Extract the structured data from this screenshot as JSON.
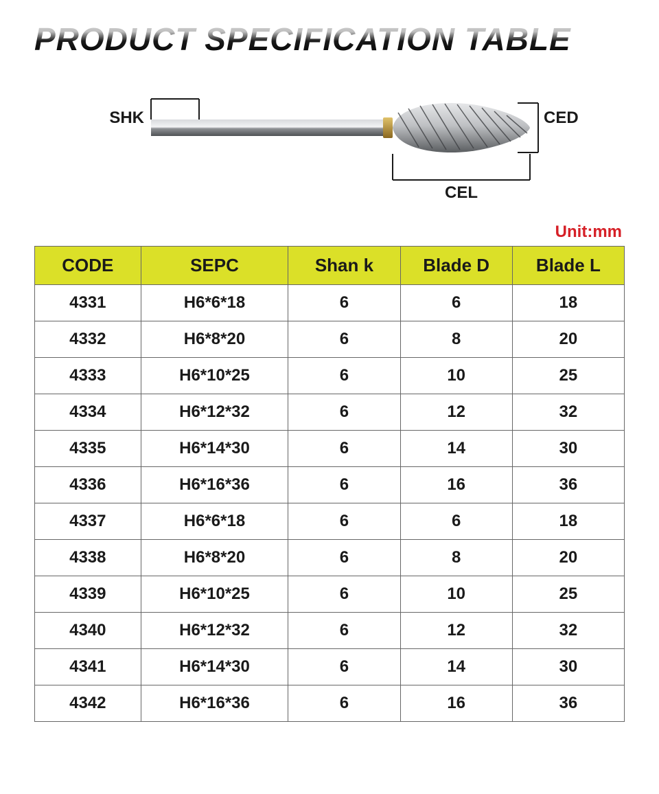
{
  "title": "PRODUCT SPECIFICATION TABLE",
  "unit_label": "Unit:mm",
  "diagram": {
    "shk_label": "SHK",
    "ced_label": "CED",
    "cel_label": "CEL",
    "shank_color": "#8f9295",
    "shank_dark": "#4f5255",
    "shank_light": "#d8dadd",
    "gold_band": "#b98f3a",
    "head_light": "#c9cbce",
    "head_dark": "#5a5d60",
    "line_color": "#1a1a1a",
    "label_color": "#1a1a1a",
    "label_fontsize": 24
  },
  "table": {
    "header_bg": "#dbe028",
    "border_color": "#666666",
    "header_fontsize": 26,
    "cell_fontsize": 24,
    "text_color": "#1a1a1a",
    "columns": [
      "CODE",
      "SEPC",
      "Shan k",
      "Blade D",
      "Blade L"
    ],
    "col_widths_pct": [
      18,
      25,
      19,
      19,
      19
    ],
    "rows": [
      [
        "4331",
        "H6*6*18",
        "6",
        "6",
        "18"
      ],
      [
        "4332",
        "H6*8*20",
        "6",
        "8",
        "20"
      ],
      [
        "4333",
        "H6*10*25",
        "6",
        "10",
        "25"
      ],
      [
        "4334",
        "H6*12*32",
        "6",
        "12",
        "32"
      ],
      [
        "4335",
        "H6*14*30",
        "6",
        "14",
        "30"
      ],
      [
        "4336",
        "H6*16*36",
        "6",
        "16",
        "36"
      ],
      [
        "4337",
        "H6*6*18",
        "6",
        "6",
        "18"
      ],
      [
        "4338",
        "H6*8*20",
        "6",
        "8",
        "20"
      ],
      [
        "4339",
        "H6*10*25",
        "6",
        "10",
        "25"
      ],
      [
        "4340",
        "H6*12*32",
        "6",
        "12",
        "32"
      ],
      [
        "4341",
        "H6*14*30",
        "6",
        "14",
        "30"
      ],
      [
        "4342",
        "H6*16*36",
        "6",
        "16",
        "36"
      ]
    ]
  }
}
